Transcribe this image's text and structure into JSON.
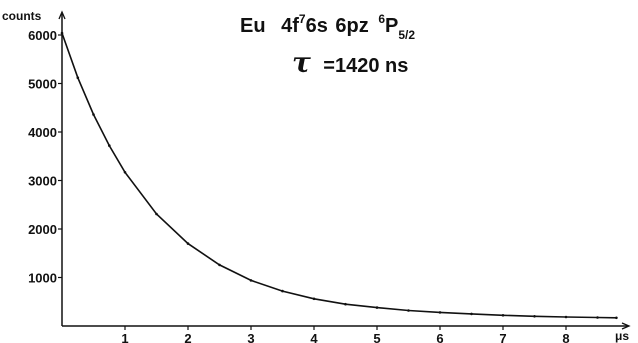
{
  "chart_data": {
    "type": "scatter",
    "title": {
      "element": "Eu",
      "config_parts": [
        "4f",
        "7",
        "6s",
        "6pz",
        "6",
        "P",
        "5/2"
      ],
      "tau_symbol": "τ",
      "tau_text": "=1420 ns"
    },
    "ylabel": "counts",
    "xlabel": "μs",
    "xlim": [
      0,
      8.8
    ],
    "ylim": [
      0,
      6200
    ],
    "x_ticks": [
      1,
      2,
      3,
      4,
      5,
      6,
      7,
      8
    ],
    "x_tick_labels": [
      "1",
      "2",
      "3",
      "4",
      "5",
      "6",
      "7",
      "8"
    ],
    "y_ticks": [
      1000,
      2000,
      3000,
      4000,
      5000,
      6000
    ],
    "y_tick_labels": [
      "1000",
      "2000",
      "3000",
      "4000",
      "5000",
      "6000"
    ],
    "series": [
      {
        "kind": "exponential_decay_fit",
        "A0": 5900,
        "tau_us": 1.42,
        "background": 140,
        "x": [
          0,
          0.25,
          0.5,
          0.75,
          1,
          1.5,
          2,
          2.5,
          3,
          3.5,
          4,
          4.5,
          5,
          5.5,
          6,
          6.5,
          7,
          7.5,
          8,
          8.5,
          8.8
        ],
        "y": [
          6040,
          5120,
          4360,
          3720,
          3170,
          2310,
          1700,
          1260,
          940,
          720,
          560,
          450,
          380,
          320,
          280,
          250,
          220,
          200,
          185,
          175,
          170
        ]
      }
    ],
    "grid": false
  }
}
